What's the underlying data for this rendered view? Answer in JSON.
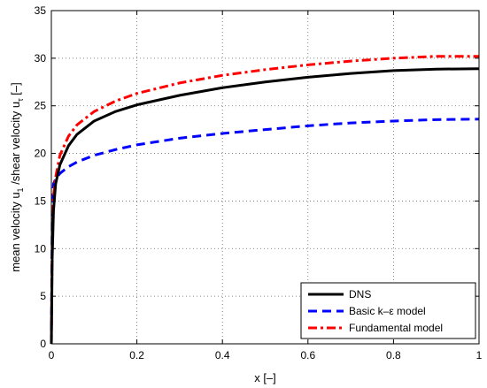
{
  "chart_data": {
    "type": "line",
    "title": "",
    "xlabel": "x [–]",
    "ylabel": "mean velocity u",
    "ylabel_sub": "1",
    "ylabel_mid": " /shear velocity u",
    "ylabel_sub2": "τ",
    "ylabel_end": " [–]",
    "xlim": [
      0,
      1
    ],
    "ylim": [
      0,
      35
    ],
    "xticks": [
      0,
      0.2,
      0.4,
      0.6,
      0.8,
      1
    ],
    "xtick_labels": [
      "0",
      "0.2",
      "0.4",
      "0.6",
      "0.8",
      "1"
    ],
    "yticks": [
      0,
      5,
      10,
      15,
      20,
      25,
      30,
      35
    ],
    "ytick_labels": [
      "0",
      "5",
      "10",
      "15",
      "20",
      "25",
      "30",
      "35"
    ],
    "grid": true,
    "legend_position": "bottom-right",
    "series": [
      {
        "name": "DNS",
        "color": "#000000",
        "style": "solid",
        "x": [
          0,
          0.002,
          0.005,
          0.01,
          0.02,
          0.04,
          0.06,
          0.1,
          0.15,
          0.2,
          0.3,
          0.4,
          0.5,
          0.6,
          0.7,
          0.8,
          0.9,
          1.0
        ],
        "y": [
          0,
          9,
          14,
          16.8,
          18.8,
          20.8,
          22.0,
          23.4,
          24.4,
          25.1,
          26.1,
          26.9,
          27.5,
          28.0,
          28.4,
          28.7,
          28.85,
          28.9
        ]
      },
      {
        "name": "Basic k–ε model",
        "color": "#0000ff",
        "style": "dashed",
        "x": [
          0,
          0.002,
          0.005,
          0.01,
          0.02,
          0.04,
          0.06,
          0.1,
          0.15,
          0.2,
          0.3,
          0.4,
          0.5,
          0.6,
          0.7,
          0.8,
          0.9,
          1.0
        ],
        "y": [
          0,
          14,
          16.8,
          17.3,
          17.9,
          18.6,
          19.1,
          19.8,
          20.4,
          20.9,
          21.6,
          22.1,
          22.5,
          22.9,
          23.2,
          23.4,
          23.55,
          23.6
        ]
      },
      {
        "name": "Fundamental model",
        "color": "#ff0000",
        "style": "dashdot",
        "x": [
          0,
          0.002,
          0.005,
          0.01,
          0.02,
          0.04,
          0.06,
          0.1,
          0.15,
          0.2,
          0.3,
          0.4,
          0.5,
          0.6,
          0.7,
          0.8,
          0.9,
          1.0
        ],
        "y": [
          0,
          11,
          15.5,
          17.5,
          19.8,
          21.8,
          23.0,
          24.4,
          25.5,
          26.3,
          27.4,
          28.2,
          28.8,
          29.3,
          29.7,
          30.0,
          30.2,
          30.2
        ]
      }
    ]
  }
}
